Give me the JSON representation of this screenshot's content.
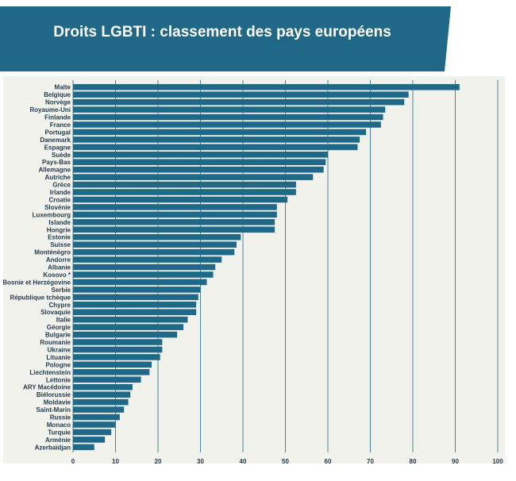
{
  "header": {
    "title": "Droits LGBTI : classement des pays européens"
  },
  "colors": {
    "banner": "#1f6887",
    "bar": "#1f6887",
    "grid": "#1f6887",
    "panel": "#f2f2ed",
    "text": "#1f3a4d"
  },
  "chart_data": {
    "type": "bar",
    "orientation": "horizontal",
    "title": "Droits LGBTI : classement des pays européens",
    "xlabel": "",
    "ylabel": "",
    "xlim": [
      0,
      100
    ],
    "ticks": [
      0,
      10,
      20,
      30,
      40,
      50,
      60,
      70,
      80,
      90,
      100
    ],
    "grid": "vertical",
    "categories": [
      "Malte",
      "Belgique",
      "Norvège",
      "Royaume-Uni",
      "Finlande",
      "France",
      "Portugal",
      "Danemark",
      "Espagne",
      "Suède",
      "Pays-Bas",
      "Allemagne",
      "Autriche",
      "Grèce",
      "Irlande",
      "Croatie",
      "Slovénie",
      "Luxembourg",
      "Islande",
      "Hongrie",
      "Estonie",
      "Suisse",
      "Monténégro",
      "Andorre",
      "Albanie",
      "Kosovo *",
      "Bosnie et Herzégovine",
      "Serbie",
      "République tchèque",
      "Chypre",
      "Slovaquie",
      "Italie",
      "Géorgie",
      "Bulgarie",
      "Roumanie",
      "Ukraine",
      "Lituanie",
      "Pologne",
      "Liechtenstein",
      "Lettonie",
      "ARY Macédoine",
      "Biélorussie",
      "Moldavie",
      "Saint-Marin",
      "Russie",
      "Monaco",
      "Turquie",
      "Arménie",
      "Azerbaïdjan"
    ],
    "values": [
      91,
      79,
      78,
      73.5,
      73,
      72.5,
      69,
      67.5,
      67,
      60,
      59.5,
      59,
      56.5,
      52.5,
      52.5,
      50.5,
      48,
      48,
      47.5,
      47.5,
      39.5,
      38.5,
      38,
      35,
      33.5,
      33,
      31.5,
      30,
      29.5,
      29,
      29,
      27,
      26,
      24.5,
      21,
      21,
      20.5,
      18.5,
      18,
      16,
      14,
      13.5,
      13,
      12,
      11,
      10,
      9,
      7.5,
      5
    ]
  }
}
